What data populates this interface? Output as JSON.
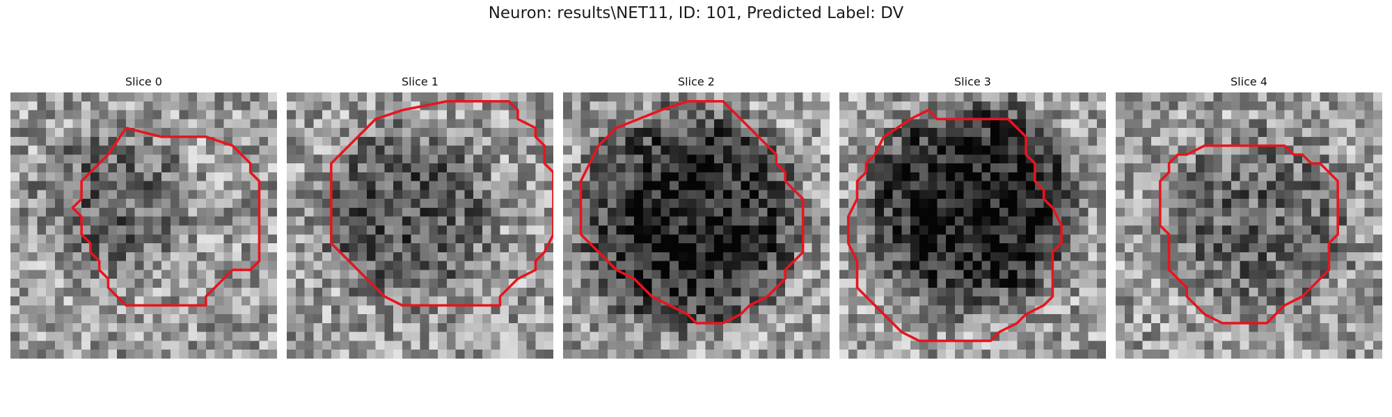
{
  "figure": {
    "title": "Neuron: results\\NET11, ID: 101, Predicted Label: DV"
  },
  "slices": [
    {
      "label": "Slice 0",
      "dark_center": [
        0.38,
        0.42
      ],
      "dark_radius": 0.3,
      "dark_strength": 0.22,
      "seed": 11
    },
    {
      "label": "Slice 1",
      "dark_center": [
        0.44,
        0.46
      ],
      "dark_radius": 0.34,
      "dark_strength": 0.28,
      "seed": 23
    },
    {
      "label": "Slice 2",
      "dark_center": [
        0.47,
        0.48
      ],
      "dark_radius": 0.42,
      "dark_strength": 0.5,
      "seed": 37
    },
    {
      "label": "Slice 3",
      "dark_center": [
        0.5,
        0.43
      ],
      "dark_radius": 0.4,
      "dark_strength": 0.55,
      "seed": 41
    },
    {
      "label": "Slice 4",
      "dark_center": [
        0.54,
        0.49
      ],
      "dark_radius": 0.36,
      "dark_strength": 0.22,
      "seed": 53
    }
  ],
  "colors": {
    "contour": "#e8141e"
  },
  "contours": [
    [
      [
        13,
        4
      ],
      [
        17,
        5
      ],
      [
        22,
        5
      ],
      [
        25,
        6
      ],
      [
        27,
        8
      ],
      [
        27,
        9
      ],
      [
        28,
        10
      ],
      [
        28,
        19
      ],
      [
        27,
        20
      ],
      [
        25,
        20
      ],
      [
        23,
        22
      ],
      [
        22,
        23
      ],
      [
        22,
        24
      ],
      [
        13,
        24
      ],
      [
        12,
        23
      ],
      [
        11,
        22
      ],
      [
        11,
        21
      ],
      [
        10,
        20
      ],
      [
        10,
        19
      ],
      [
        9,
        18
      ],
      [
        9,
        17
      ],
      [
        8,
        16
      ],
      [
        8,
        14
      ],
      [
        7,
        13
      ],
      [
        8,
        12
      ],
      [
        8,
        10
      ],
      [
        9,
        9
      ],
      [
        11,
        7
      ]
    ],
    [
      [
        10,
        3
      ],
      [
        13,
        2
      ],
      [
        18,
        1
      ],
      [
        25,
        1
      ],
      [
        26,
        2
      ],
      [
        26,
        3
      ],
      [
        28,
        4
      ],
      [
        28,
        5
      ],
      [
        29,
        6
      ],
      [
        29,
        8
      ],
      [
        30,
        9
      ],
      [
        30,
        16
      ],
      [
        29,
        18
      ],
      [
        28,
        19
      ],
      [
        28,
        20
      ],
      [
        26,
        21
      ],
      [
        25,
        22
      ],
      [
        24,
        23
      ],
      [
        24,
        24
      ],
      [
        13,
        24
      ],
      [
        11,
        23
      ],
      [
        9,
        21
      ],
      [
        7,
        19
      ],
      [
        5,
        17
      ],
      [
        5,
        8
      ],
      [
        6,
        7
      ],
      [
        8,
        5
      ]
    ],
    [
      [
        11,
        2
      ],
      [
        14,
        1
      ],
      [
        18,
        1
      ],
      [
        19,
        2
      ],
      [
        20,
        3
      ],
      [
        21,
        4
      ],
      [
        23,
        6
      ],
      [
        24,
        7
      ],
      [
        24,
        8
      ],
      [
        25,
        9
      ],
      [
        25,
        10
      ],
      [
        26,
        11
      ],
      [
        27,
        12
      ],
      [
        27,
        18
      ],
      [
        26,
        19
      ],
      [
        25,
        20
      ],
      [
        25,
        21
      ],
      [
        24,
        22
      ],
      [
        23,
        23
      ],
      [
        21,
        24
      ],
      [
        20,
        25
      ],
      [
        18,
        26
      ],
      [
        15,
        26
      ],
      [
        14,
        25
      ],
      [
        12,
        24
      ],
      [
        10,
        23
      ],
      [
        8,
        21
      ],
      [
        6,
        20
      ],
      [
        4,
        18
      ],
      [
        2,
        16
      ],
      [
        2,
        10
      ],
      [
        3,
        8
      ],
      [
        4,
        6
      ],
      [
        6,
        4
      ]
    ],
    [
      [
        8,
        3
      ],
      [
        10,
        2
      ],
      [
        11,
        3
      ],
      [
        19,
        3
      ],
      [
        20,
        4
      ],
      [
        21,
        5
      ],
      [
        21,
        7
      ],
      [
        22,
        8
      ],
      [
        22,
        10
      ],
      [
        23,
        11
      ],
      [
        23,
        12
      ],
      [
        24,
        13
      ],
      [
        25,
        15
      ],
      [
        25,
        17
      ],
      [
        24,
        18
      ],
      [
        24,
        23
      ],
      [
        23,
        24
      ],
      [
        21,
        25
      ],
      [
        20,
        26
      ],
      [
        18,
        27
      ],
      [
        17,
        28
      ],
      [
        9,
        28
      ],
      [
        7,
        27
      ],
      [
        5,
        25
      ],
      [
        4,
        24
      ],
      [
        3,
        23
      ],
      [
        2,
        22
      ],
      [
        2,
        19
      ],
      [
        1,
        17
      ],
      [
        1,
        14
      ],
      [
        2,
        12
      ],
      [
        2,
        10
      ],
      [
        3,
        9
      ],
      [
        3,
        8
      ],
      [
        4,
        7
      ],
      [
        5,
        5
      ]
    ],
    [
      [
        10,
        6
      ],
      [
        19,
        6
      ],
      [
        20,
        7
      ],
      [
        21,
        7
      ],
      [
        22,
        8
      ],
      [
        23,
        8
      ],
      [
        24,
        9
      ],
      [
        25,
        10
      ],
      [
        25,
        16
      ],
      [
        24,
        17
      ],
      [
        24,
        20
      ],
      [
        23,
        21
      ],
      [
        22,
        22
      ],
      [
        21,
        23
      ],
      [
        19,
        24
      ],
      [
        17,
        26
      ],
      [
        12,
        26
      ],
      [
        10,
        25
      ],
      [
        9,
        24
      ],
      [
        8,
        23
      ],
      [
        8,
        22
      ],
      [
        7,
        21
      ],
      [
        6,
        20
      ],
      [
        6,
        16
      ],
      [
        5,
        15
      ],
      [
        5,
        10
      ],
      [
        6,
        9
      ],
      [
        6,
        8
      ],
      [
        7,
        7
      ],
      [
        8,
        7
      ]
    ]
  ]
}
